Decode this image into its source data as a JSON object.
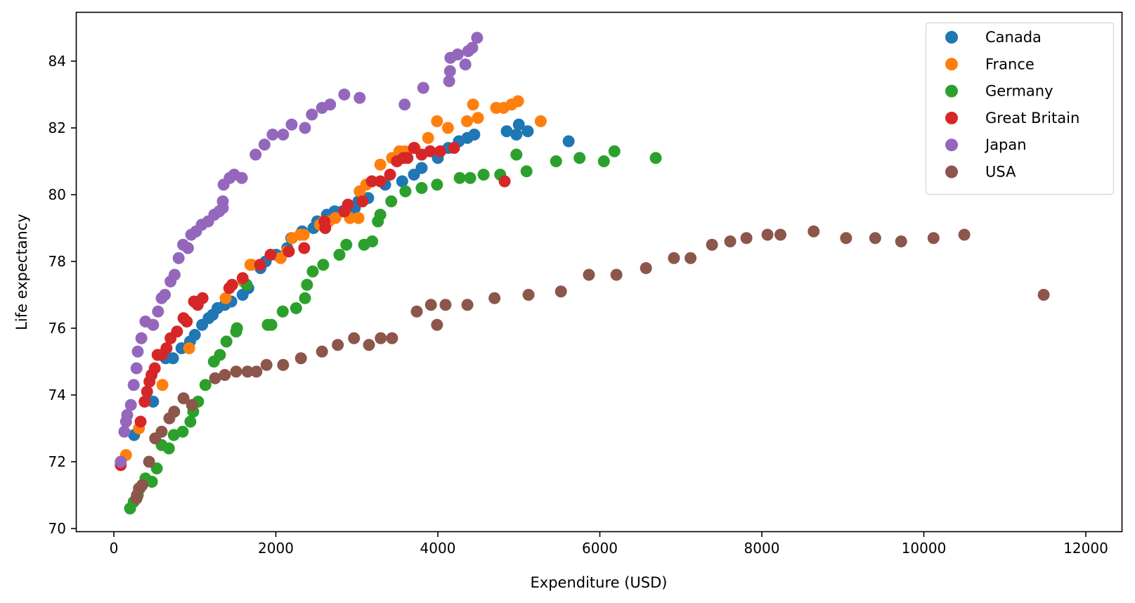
{
  "chart_data": {
    "type": "scatter",
    "title": "",
    "xlabel": "Expenditure (USD)",
    "ylabel": "Life expectancy",
    "xlim": [
      -480,
      12450
    ],
    "ylim": [
      69.9,
      85.4
    ],
    "xticks": [
      0,
      2000,
      4000,
      6000,
      8000,
      10000,
      12000
    ],
    "xtick_labels": [
      "0",
      "2000",
      "4000",
      "6000",
      "8000",
      "10000",
      "12000"
    ],
    "yticks": [
      70,
      72,
      74,
      76,
      78,
      80,
      82,
      84
    ],
    "ytick_labels": [
      "70",
      "72",
      "74",
      "76",
      "78",
      "80",
      "82",
      "84"
    ],
    "grid": false,
    "legend_position": "upper right",
    "series": [
      {
        "name": "Canada",
        "color": "#1f77b4",
        "points": [
          [
            250,
            72.8
          ],
          [
            485,
            73.8
          ],
          [
            640,
            75.1
          ],
          [
            730,
            75.1
          ],
          [
            835,
            75.4
          ],
          [
            940,
            75.6
          ],
          [
            1000,
            75.8
          ],
          [
            1090,
            76.1
          ],
          [
            1170,
            76.3
          ],
          [
            1220,
            76.4
          ],
          [
            1280,
            76.6
          ],
          [
            1370,
            76.7
          ],
          [
            1450,
            76.8
          ],
          [
            1590,
            77.0
          ],
          [
            1660,
            77.2
          ],
          [
            1810,
            77.8
          ],
          [
            1875,
            78.0
          ],
          [
            2005,
            78.2
          ],
          [
            2140,
            78.4
          ],
          [
            2190,
            78.7
          ],
          [
            2325,
            78.9
          ],
          [
            2465,
            79.0
          ],
          [
            2510,
            79.2
          ],
          [
            2630,
            79.4
          ],
          [
            2725,
            79.5
          ],
          [
            2820,
            79.5
          ],
          [
            2975,
            79.6
          ],
          [
            3020,
            79.8
          ],
          [
            3140,
            79.9
          ],
          [
            3350,
            80.3
          ],
          [
            3560,
            80.4
          ],
          [
            3705,
            80.6
          ],
          [
            3800,
            80.8
          ],
          [
            4000,
            81.1
          ],
          [
            4130,
            81.4
          ],
          [
            4260,
            81.6
          ],
          [
            4365,
            81.7
          ],
          [
            4450,
            81.8
          ],
          [
            4850,
            81.9
          ],
          [
            4970,
            81.8
          ],
          [
            5000,
            82.1
          ],
          [
            5110,
            81.9
          ],
          [
            5615,
            81.6
          ]
        ]
      },
      {
        "name": "France",
        "color": "#ff7f0e",
        "points": [
          [
            150,
            72.2
          ],
          [
            310,
            73.0
          ],
          [
            600,
            74.3
          ],
          [
            930,
            75.4
          ],
          [
            1380,
            76.9
          ],
          [
            1600,
            77.4
          ],
          [
            1685,
            77.9
          ],
          [
            1700,
            77.9
          ],
          [
            2060,
            78.1
          ],
          [
            2135,
            78.3
          ],
          [
            2200,
            78.7
          ],
          [
            2300,
            78.8
          ],
          [
            2345,
            78.8
          ],
          [
            2545,
            79.1
          ],
          [
            2590,
            79.2
          ],
          [
            2655,
            79.2
          ],
          [
            2735,
            79.3
          ],
          [
            2915,
            79.3
          ],
          [
            3020,
            79.3
          ],
          [
            3035,
            80.1
          ],
          [
            3115,
            80.3
          ],
          [
            3290,
            80.9
          ],
          [
            3435,
            81.1
          ],
          [
            3525,
            81.3
          ],
          [
            3590,
            81.3
          ],
          [
            3715,
            81.4
          ],
          [
            3880,
            81.7
          ],
          [
            3990,
            82.2
          ],
          [
            4125,
            82.0
          ],
          [
            4360,
            82.2
          ],
          [
            4435,
            82.7
          ],
          [
            4495,
            82.3
          ],
          [
            4720,
            82.6
          ],
          [
            4810,
            82.6
          ],
          [
            4910,
            82.7
          ],
          [
            4990,
            82.8
          ],
          [
            5270,
            82.2
          ]
        ]
      },
      {
        "name": "Germany",
        "color": "#2ca02c",
        "points": [
          [
            200,
            70.6
          ],
          [
            245,
            70.8
          ],
          [
            295,
            71.0
          ],
          [
            320,
            71.2
          ],
          [
            390,
            71.5
          ],
          [
            470,
            71.4
          ],
          [
            530,
            71.8
          ],
          [
            590,
            72.5
          ],
          [
            680,
            72.4
          ],
          [
            740,
            72.8
          ],
          [
            850,
            72.9
          ],
          [
            945,
            73.2
          ],
          [
            980,
            73.5
          ],
          [
            1040,
            73.8
          ],
          [
            1130,
            74.3
          ],
          [
            1235,
            75.0
          ],
          [
            1310,
            75.2
          ],
          [
            1390,
            75.6
          ],
          [
            1510,
            75.9
          ],
          [
            1520,
            76.0
          ],
          [
            1640,
            77.3
          ],
          [
            1900,
            76.1
          ],
          [
            1945,
            76.1
          ],
          [
            2085,
            76.5
          ],
          [
            2250,
            76.6
          ],
          [
            2360,
            76.9
          ],
          [
            2385,
            77.3
          ],
          [
            2455,
            77.7
          ],
          [
            2585,
            77.9
          ],
          [
            2785,
            78.2
          ],
          [
            2870,
            78.5
          ],
          [
            3090,
            78.5
          ],
          [
            3190,
            78.6
          ],
          [
            3260,
            79.2
          ],
          [
            3290,
            79.4
          ],
          [
            3425,
            79.8
          ],
          [
            3600,
            80.1
          ],
          [
            3800,
            80.2
          ],
          [
            3990,
            80.3
          ],
          [
            4270,
            80.5
          ],
          [
            4400,
            80.5
          ],
          [
            4565,
            80.6
          ],
          [
            4770,
            80.6
          ],
          [
            5095,
            80.7
          ],
          [
            4970,
            81.2
          ],
          [
            5460,
            81.0
          ],
          [
            5750,
            81.1
          ],
          [
            6050,
            81.0
          ],
          [
            6180,
            81.3
          ],
          [
            6690,
            81.1
          ]
        ]
      },
      {
        "name": "Great Britain",
        "color": "#d62728",
        "points": [
          [
            85,
            71.9
          ],
          [
            330,
            73.2
          ],
          [
            380,
            73.8
          ],
          [
            410,
            74.1
          ],
          [
            440,
            74.4
          ],
          [
            465,
            74.6
          ],
          [
            505,
            74.8
          ],
          [
            540,
            75.2
          ],
          [
            590,
            75.2
          ],
          [
            650,
            75.4
          ],
          [
            700,
            75.7
          ],
          [
            780,
            75.9
          ],
          [
            860,
            76.3
          ],
          [
            900,
            76.2
          ],
          [
            990,
            76.8
          ],
          [
            1095,
            76.9
          ],
          [
            1035,
            76.7
          ],
          [
            1425,
            77.2
          ],
          [
            1460,
            77.3
          ],
          [
            1590,
            77.5
          ],
          [
            1805,
            77.9
          ],
          [
            1935,
            78.2
          ],
          [
            2160,
            78.3
          ],
          [
            2350,
            78.4
          ],
          [
            2600,
            79.2
          ],
          [
            2610,
            79.0
          ],
          [
            2845,
            79.5
          ],
          [
            2890,
            79.7
          ],
          [
            3070,
            79.8
          ],
          [
            3185,
            80.4
          ],
          [
            3290,
            80.4
          ],
          [
            3410,
            80.6
          ],
          [
            3495,
            81.0
          ],
          [
            3575,
            81.1
          ],
          [
            3625,
            81.1
          ],
          [
            3705,
            81.4
          ],
          [
            3800,
            81.2
          ],
          [
            3905,
            81.3
          ],
          [
            4030,
            81.3
          ],
          [
            4200,
            81.4
          ],
          [
            4825,
            80.4
          ]
        ]
      },
      {
        "name": "Japan",
        "color": "#9467bd",
        "points": [
          [
            85,
            72.0
          ],
          [
            130,
            72.9
          ],
          [
            150,
            73.2
          ],
          [
            165,
            73.4
          ],
          [
            210,
            73.7
          ],
          [
            245,
            74.3
          ],
          [
            280,
            74.8
          ],
          [
            295,
            75.3
          ],
          [
            340,
            75.7
          ],
          [
            390,
            76.2
          ],
          [
            485,
            76.1
          ],
          [
            545,
            76.5
          ],
          [
            590,
            76.9
          ],
          [
            630,
            77.0
          ],
          [
            700,
            77.4
          ],
          [
            750,
            77.6
          ],
          [
            800,
            78.1
          ],
          [
            855,
            78.5
          ],
          [
            915,
            78.4
          ],
          [
            955,
            78.8
          ],
          [
            1015,
            78.9
          ],
          [
            1085,
            79.1
          ],
          [
            1165,
            79.2
          ],
          [
            1240,
            79.4
          ],
          [
            1300,
            79.5
          ],
          [
            1345,
            79.8
          ],
          [
            1345,
            79.6
          ],
          [
            1355,
            80.3
          ],
          [
            1430,
            80.5
          ],
          [
            1485,
            80.6
          ],
          [
            1580,
            80.5
          ],
          [
            1750,
            81.2
          ],
          [
            1860,
            81.5
          ],
          [
            1960,
            81.8
          ],
          [
            2090,
            81.8
          ],
          [
            2195,
            82.1
          ],
          [
            2360,
            82.0
          ],
          [
            2445,
            82.4
          ],
          [
            2570,
            82.6
          ],
          [
            2670,
            82.7
          ],
          [
            2845,
            83.0
          ],
          [
            3035,
            82.9
          ],
          [
            3590,
            82.7
          ],
          [
            3820,
            83.2
          ],
          [
            4140,
            83.4
          ],
          [
            4150,
            83.7
          ],
          [
            4155,
            84.1
          ],
          [
            4245,
            84.2
          ],
          [
            4340,
            83.9
          ],
          [
            4375,
            84.3
          ],
          [
            4425,
            84.4
          ],
          [
            4485,
            84.7
          ]
        ]
      },
      {
        "name": "USA",
        "color": "#8c564b",
        "points": [
          [
            280,
            70.9
          ],
          [
            285,
            71.0
          ],
          [
            310,
            71.2
          ],
          [
            350,
            71.3
          ],
          [
            435,
            72.0
          ],
          [
            510,
            72.7
          ],
          [
            590,
            72.9
          ],
          [
            685,
            73.3
          ],
          [
            745,
            73.5
          ],
          [
            860,
            73.9
          ],
          [
            965,
            73.7
          ],
          [
            1250,
            74.5
          ],
          [
            1370,
            74.6
          ],
          [
            1510,
            74.7
          ],
          [
            1650,
            74.7
          ],
          [
            1760,
            74.7
          ],
          [
            1885,
            74.9
          ],
          [
            2090,
            74.9
          ],
          [
            2310,
            75.1
          ],
          [
            2570,
            75.3
          ],
          [
            2765,
            75.5
          ],
          [
            2965,
            75.7
          ],
          [
            3150,
            75.5
          ],
          [
            3295,
            75.7
          ],
          [
            3435,
            75.7
          ],
          [
            3740,
            76.5
          ],
          [
            3915,
            76.7
          ],
          [
            3990,
            76.1
          ],
          [
            4095,
            76.7
          ],
          [
            4365,
            76.7
          ],
          [
            4700,
            76.9
          ],
          [
            5120,
            77.0
          ],
          [
            5520,
            77.1
          ],
          [
            5865,
            77.6
          ],
          [
            6205,
            77.6
          ],
          [
            6570,
            77.8
          ],
          [
            6915,
            78.1
          ],
          [
            7120,
            78.1
          ],
          [
            7385,
            78.5
          ],
          [
            7610,
            78.6
          ],
          [
            7810,
            78.7
          ],
          [
            8070,
            78.8
          ],
          [
            8230,
            78.8
          ],
          [
            8640,
            78.9
          ],
          [
            9040,
            78.7
          ],
          [
            9400,
            78.7
          ],
          [
            9720,
            78.6
          ],
          [
            10120,
            78.7
          ],
          [
            10500,
            78.8
          ],
          [
            11480,
            77.0
          ]
        ]
      }
    ]
  }
}
